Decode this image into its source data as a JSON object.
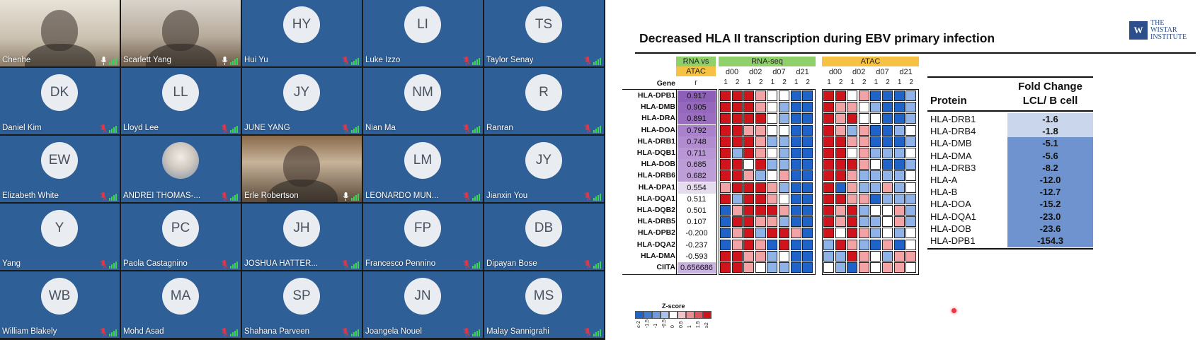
{
  "gallery": {
    "tiles": [
      {
        "name": "Chenhe",
        "avatar": "",
        "muted": false,
        "kind": "video1"
      },
      {
        "name": "Scarlett Yang",
        "avatar": "",
        "muted": false,
        "kind": "video2"
      },
      {
        "name": "Hui Yu",
        "avatar": "HY",
        "muted": true,
        "kind": "avatar"
      },
      {
        "name": "Luke Izzo",
        "avatar": "LI",
        "muted": true,
        "kind": "avatar"
      },
      {
        "name": "Taylor Senay",
        "avatar": "TS",
        "muted": true,
        "kind": "avatar"
      },
      {
        "name": "Daniel Kim",
        "avatar": "DK",
        "muted": true,
        "kind": "avatar"
      },
      {
        "name": "Lloyd Lee",
        "avatar": "LL",
        "muted": true,
        "kind": "avatar"
      },
      {
        "name": "JUNE YANG",
        "avatar": "JY",
        "muted": true,
        "kind": "avatar"
      },
      {
        "name": "Nian Ma",
        "avatar": "NM",
        "muted": true,
        "kind": "avatar"
      },
      {
        "name": "Ranran",
        "avatar": "R",
        "muted": true,
        "kind": "avatar"
      },
      {
        "name": "Elizabeth White",
        "avatar": "EW",
        "muted": true,
        "kind": "avatar"
      },
      {
        "name": "ANDREI THOMAS-...",
        "avatar": "",
        "muted": true,
        "kind": "photo"
      },
      {
        "name": "Erle Robertson",
        "avatar": "",
        "muted": false,
        "kind": "video3"
      },
      {
        "name": "LEONARDO MUN...",
        "avatar": "LM",
        "muted": true,
        "kind": "avatar"
      },
      {
        "name": "Jianxin You",
        "avatar": "JY",
        "muted": true,
        "kind": "avatar"
      },
      {
        "name": "Yang",
        "avatar": "Y",
        "muted": true,
        "kind": "avatar"
      },
      {
        "name": "Paola Castagnino",
        "avatar": "PC",
        "muted": true,
        "kind": "avatar"
      },
      {
        "name": "JOSHUA HATTER...",
        "avatar": "JH",
        "muted": true,
        "kind": "avatar"
      },
      {
        "name": "Francesco Pennino",
        "avatar": "FP",
        "muted": true,
        "kind": "avatar"
      },
      {
        "name": "Dipayan Bose",
        "avatar": "DB",
        "muted": true,
        "kind": "avatar"
      },
      {
        "name": "William Blakely",
        "avatar": "WB",
        "muted": true,
        "kind": "avatar"
      },
      {
        "name": "Mohd Asad",
        "avatar": "MA",
        "muted": true,
        "kind": "avatar"
      },
      {
        "name": "Shahana Parveen",
        "avatar": "SP",
        "muted": true,
        "kind": "avatar"
      },
      {
        "name": "Joangela Nouel",
        "avatar": "JN",
        "muted": true,
        "kind": "avatar"
      },
      {
        "name": "Malay Sannigrahi",
        "avatar": "MS",
        "muted": true,
        "kind": "avatar"
      }
    ]
  },
  "slide": {
    "title": "Decreased HLA II transcription during EBV primary infection",
    "logo_mark": "W",
    "logo_line1": "THE",
    "logo_line2": "WISTAR",
    "logo_line3": "INSTITUTE",
    "heatmap": {
      "gene_header": "Gene",
      "rna_vs_header_1": "RNA vs",
      "rna_vs_header_2": "ATAC",
      "r_header": "r",
      "rnaseq_header": "RNA-seq",
      "atac_header": "ATAC",
      "days": [
        "d00",
        "d02",
        "d07",
        "d21"
      ],
      "reps": [
        "1",
        "2"
      ],
      "genes": [
        "HLA-DPB1",
        "HLA-DMB",
        "HLA-DRA",
        "HLA-DOA",
        "HLA-DRB1",
        "HLA-DQB1",
        "HLA-DOB",
        "HLA-DRB6",
        "HLA-DPA1",
        "HLA-DQA1",
        "HLA-DQB2",
        "HLA-DRB5",
        "HLA-DPB2",
        "HLA-DQA2",
        "HLA-DMA",
        "CIITA"
      ],
      "r_values": [
        "0.917",
        "0.905",
        "0.891",
        "0.792",
        "0.748",
        "0.711",
        "0.685",
        "0.682",
        "0.554",
        "0.511",
        "0.501",
        "0.107",
        "-0.200",
        "-0.237",
        "-0.593",
        "0.656686"
      ],
      "r_colors": [
        "#8e5fb8",
        "#9567bd",
        "#9a6dc0",
        "#a982cb",
        "#b18dcf",
        "#b897d4",
        "#bc9dd7",
        "#bd9ed7",
        "#e6dcef",
        "#ffffff",
        "#ffffff",
        "#ffffff",
        "#ffffff",
        "#ffffff",
        "#ffffff",
        "#c9b3de"
      ],
      "rnaseq_z": [
        [
          2,
          2,
          2,
          1,
          0,
          0,
          -2,
          -2
        ],
        [
          2,
          2,
          2,
          1,
          0,
          -1,
          -2,
          -2
        ],
        [
          2,
          2,
          2,
          2,
          0,
          -1,
          -2,
          -2
        ],
        [
          2,
          2,
          1,
          1,
          0,
          0,
          -2,
          -2
        ],
        [
          2,
          2,
          2,
          1,
          -1,
          -1,
          -2,
          -2
        ],
        [
          2,
          -1,
          2,
          1,
          0,
          -1,
          -2,
          -2
        ],
        [
          2,
          2,
          0,
          2,
          -1,
          -1,
          -2,
          -2
        ],
        [
          2,
          2,
          1,
          -1,
          0,
          1,
          -2,
          -2
        ],
        [
          1,
          2,
          2,
          2,
          1,
          -1,
          -2,
          -2
        ],
        [
          2,
          -1,
          2,
          2,
          1,
          0,
          -2,
          -2
        ],
        [
          -2,
          1,
          2,
          2,
          2,
          1,
          -2,
          -2
        ],
        [
          -2,
          2,
          2,
          1,
          1,
          -1,
          -2,
          -2
        ],
        [
          -2,
          1,
          2,
          -1,
          2,
          2,
          1,
          -2
        ],
        [
          -2,
          1,
          2,
          1,
          -2,
          2,
          -2,
          -2
        ],
        [
          2,
          2,
          1,
          1,
          -1,
          0,
          -2,
          -2
        ],
        [
          2,
          2,
          1,
          0,
          -1,
          -1,
          -2,
          -2
        ]
      ],
      "atac_z": [
        [
          2,
          2,
          0,
          1,
          -2,
          -2,
          -2,
          -1
        ],
        [
          2,
          1,
          1,
          0,
          -1,
          -2,
          -2,
          -1
        ],
        [
          2,
          1,
          2,
          0,
          0,
          -2,
          -2,
          -1
        ],
        [
          2,
          1,
          -1,
          1,
          -2,
          -2,
          -1,
          0
        ],
        [
          2,
          2,
          1,
          1,
          -2,
          -2,
          -2,
          -1
        ],
        [
          2,
          2,
          0,
          1,
          -1,
          -1,
          -1,
          0
        ],
        [
          2,
          2,
          2,
          1,
          0,
          -2,
          -2,
          -1
        ],
        [
          2,
          2,
          1,
          -1,
          -1,
          -1,
          -1,
          0
        ],
        [
          2,
          -2,
          1,
          -1,
          -1,
          1,
          -1,
          0
        ],
        [
          2,
          2,
          1,
          1,
          -2,
          -1,
          -1,
          -1
        ],
        [
          2,
          1,
          2,
          -1,
          0,
          0,
          1,
          -1
        ],
        [
          2,
          1,
          2,
          -1,
          -1,
          0,
          1,
          -1
        ],
        [
          2,
          0,
          2,
          1,
          -1,
          0,
          -1,
          0
        ],
        [
          -1,
          2,
          1,
          -1,
          -2,
          1,
          -2,
          0
        ],
        [
          -1,
          -1,
          2,
          1,
          0,
          -1,
          1,
          1
        ],
        [
          0,
          -1,
          -2,
          1,
          0,
          1,
          1,
          0
        ]
      ],
      "zscore_title": "Z-score",
      "zscore_ticks": [
        "≤-2",
        "-1.5",
        "-1",
        "-0.5",
        "0",
        "0.5",
        "1",
        "1.5",
        "≥2"
      ]
    },
    "fold_table": {
      "header_protein": "Protein",
      "header_fc_1": "Fold Change",
      "header_fc_2": "LCL/ B cell",
      "rows": [
        {
          "protein": "HLA-DRB1",
          "value": "-1.6",
          "shade": "#c9d6ec"
        },
        {
          "protein": "HLA-DRB4",
          "value": "-1.8",
          "shade": "#c9d6ec"
        },
        {
          "protein": "HLA-DMB",
          "value": "-5.1",
          "shade": "#6f93cf"
        },
        {
          "protein": "HLA-DMA",
          "value": "-5.6",
          "shade": "#6f93cf"
        },
        {
          "protein": "HLA-DRB3",
          "value": "-8.2",
          "shade": "#6f93cf"
        },
        {
          "protein": "HLA-A",
          "value": "-12.0",
          "shade": "#6f93cf"
        },
        {
          "protein": "HLA-B",
          "value": "-12.7",
          "shade": "#6f93cf"
        },
        {
          "protein": "HLA-DOA",
          "value": "-15.2",
          "shade": "#6f93cf"
        },
        {
          "protein": "HLA-DQA1",
          "value": "-23.0",
          "shade": "#6f93cf"
        },
        {
          "protein": "HLA-DOB",
          "value": "-23.6",
          "shade": "#6f93cf"
        },
        {
          "protein": "HLA-DPB1",
          "value": "-154.3",
          "shade": "#6f93cf"
        }
      ]
    }
  }
}
